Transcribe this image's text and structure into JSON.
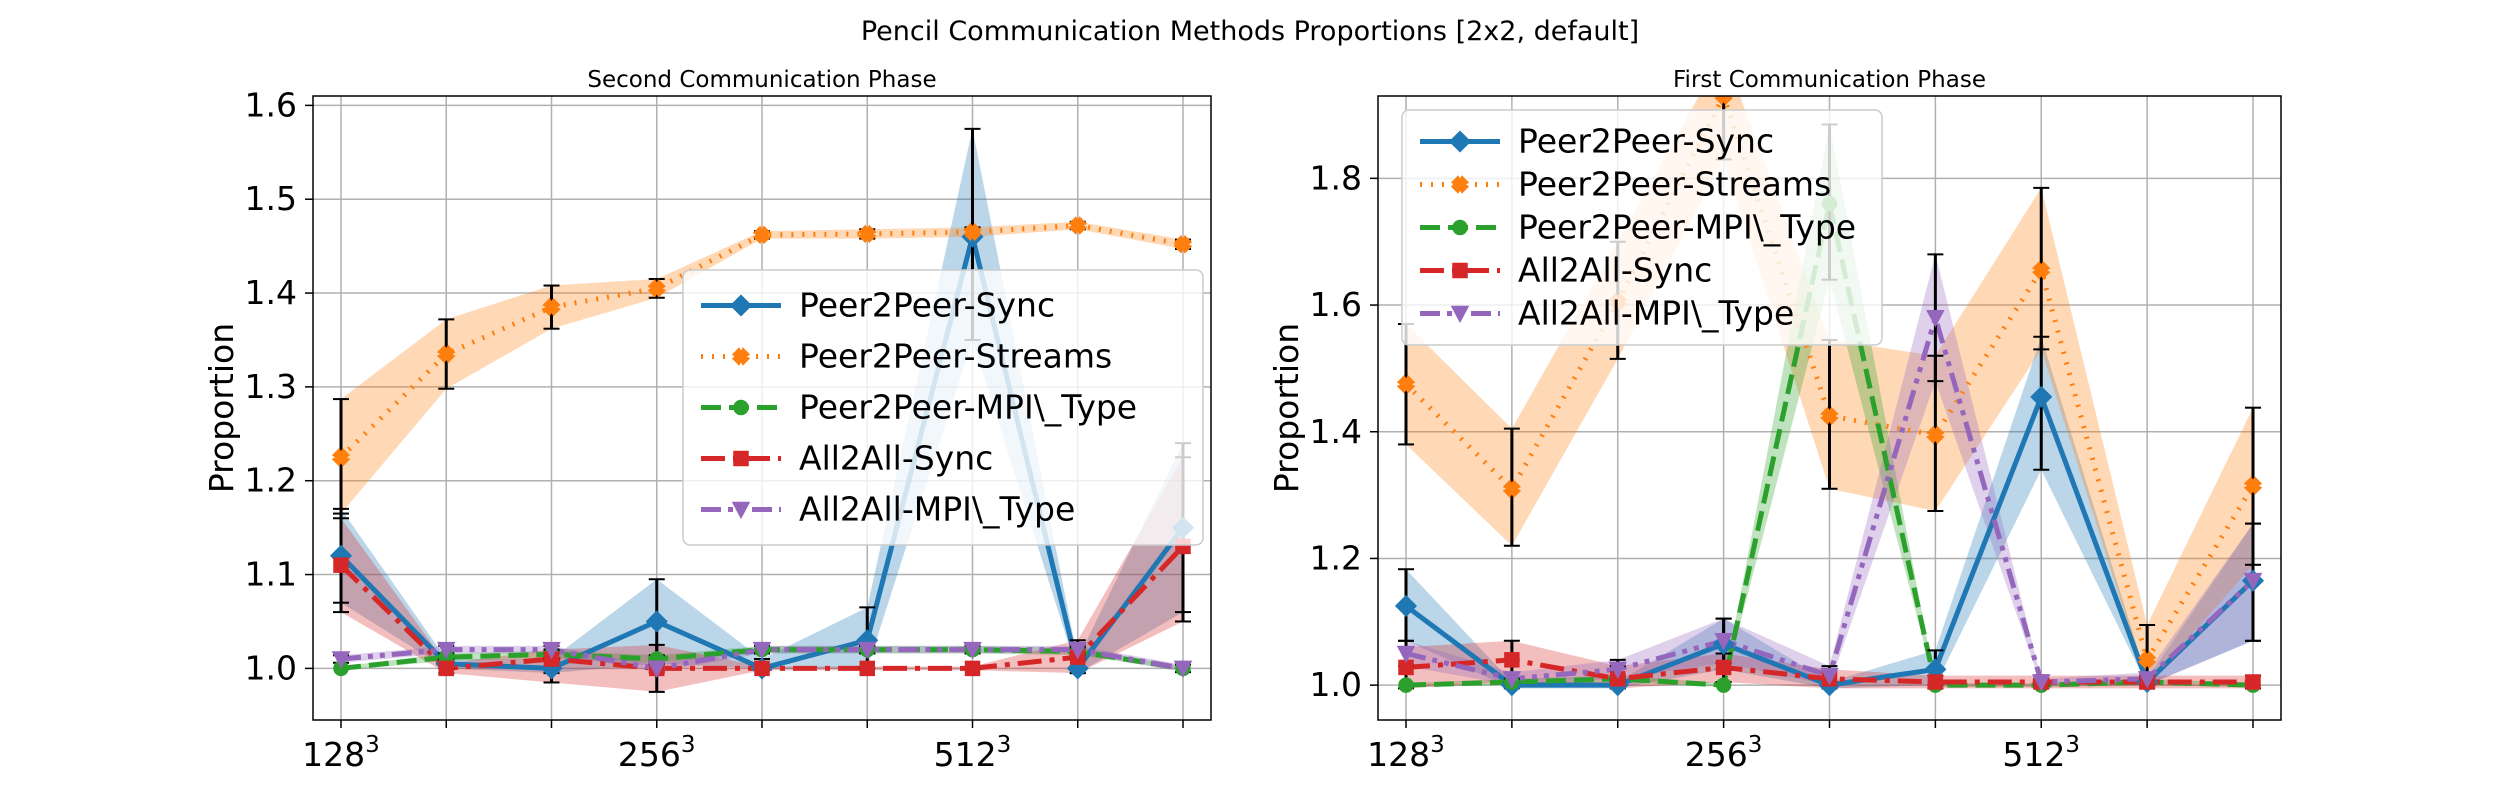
{
  "figure": {
    "title": "Pencil Communication Methods Proportions [2x2, default]"
  },
  "chart_data": [
    {
      "type": "line",
      "title": "Second Communication Phase",
      "ylabel": "Proportion",
      "xlabel": "",
      "ylim": [
        0.945,
        1.61
      ],
      "yticks": [
        1.0,
        1.1,
        1.2,
        1.3,
        1.4,
        1.5,
        1.6
      ],
      "ytick_labels": [
        "1.0",
        "1.1",
        "1.2",
        "1.3",
        "1.4",
        "1.5",
        "1.6"
      ],
      "xtick_labels": [
        {
          "base": "128",
          "exp": "3"
        },
        {
          "base": "256",
          "exp": "3"
        },
        {
          "base": "512",
          "exp": "3"
        }
      ],
      "grid": true,
      "legend": "center-right",
      "series": [
        {
          "name": "Peer2Peer-Sync",
          "color": "#1f77b4",
          "marker": "diamond",
          "dash": "solid",
          "values": [
            1.12,
            1.005,
            1.0,
            1.05,
            1.0,
            1.03,
            1.46,
            1.0,
            1.15
          ],
          "lower": [
            1.07,
            1.0,
            0.995,
            1.005,
            1.0,
            1.0,
            1.35,
            0.995,
            1.06
          ],
          "upper": [
            1.17,
            1.01,
            1.01,
            1.095,
            1.01,
            1.065,
            1.575,
            1.01,
            1.24
          ]
        },
        {
          "name": "Peer2Peer-Streams",
          "color": "#ff7f0e",
          "marker": "x",
          "dash": "dotted",
          "values": [
            1.225,
            1.335,
            1.385,
            1.405,
            1.462,
            1.463,
            1.465,
            1.472,
            1.452
          ],
          "lower": [
            1.165,
            1.298,
            1.362,
            1.395,
            1.458,
            1.458,
            1.46,
            1.468,
            1.447
          ],
          "upper": [
            1.287,
            1.372,
            1.408,
            1.415,
            1.466,
            1.468,
            1.47,
            1.476,
            1.457
          ]
        },
        {
          "name": "Peer2Peer-MPI\\_Type",
          "color": "#2ca02c",
          "marker": "circle",
          "dash": "dashed",
          "values": [
            1.0,
            1.012,
            1.015,
            1.01,
            1.02,
            1.02,
            1.02,
            1.018,
            1.0
          ],
          "lower": [
            0.998,
            1.008,
            1.011,
            1.006,
            1.016,
            1.016,
            1.016,
            1.014,
            0.998
          ],
          "upper": [
            1.002,
            1.016,
            1.019,
            1.014,
            1.024,
            1.024,
            1.024,
            1.022,
            1.002
          ]
        },
        {
          "name": "All2All-Sync",
          "color": "#d62728",
          "marker": "square",
          "dash": "dashdot",
          "values": [
            1.11,
            1.0,
            1.01,
            1.0,
            1.0,
            1.0,
            1.0,
            1.012,
            1.13
          ],
          "lower": [
            1.06,
            0.995,
            0.985,
            0.975,
            0.998,
            0.998,
            0.998,
            0.995,
            1.05
          ],
          "upper": [
            1.16,
            1.005,
            1.02,
            1.025,
            1.002,
            1.002,
            1.002,
            1.03,
            1.225
          ]
        },
        {
          "name": "All2All-MPI\\_Type",
          "color": "#9467bd",
          "marker": "triangle-down",
          "dash": "dashdotdot",
          "values": [
            1.01,
            1.02,
            1.02,
            1.0,
            1.02,
            1.02,
            1.02,
            1.02,
            1.0
          ],
          "lower": [
            1.006,
            1.016,
            1.016,
            0.996,
            1.016,
            1.016,
            1.016,
            1.016,
            0.996
          ],
          "upper": [
            1.014,
            1.024,
            1.024,
            1.004,
            1.024,
            1.024,
            1.024,
            1.024,
            1.004
          ]
        }
      ]
    },
    {
      "type": "line",
      "title": "First Communication Phase",
      "ylabel": "Proportion",
      "xlabel": "",
      "ylim": [
        0.945,
        1.93
      ],
      "yticks": [
        1.0,
        1.2,
        1.4,
        1.6,
        1.8
      ],
      "ytick_labels": [
        "1.0",
        "1.2",
        "1.4",
        "1.6",
        "1.8"
      ],
      "xtick_labels": [
        {
          "base": "128",
          "exp": "3"
        },
        {
          "base": "256",
          "exp": "3"
        },
        {
          "base": "512",
          "exp": "3"
        }
      ],
      "grid": true,
      "legend": "upper-left",
      "series": [
        {
          "name": "Peer2Peer-Sync",
          "color": "#1f77b4",
          "marker": "diamond",
          "dash": "solid",
          "values": [
            1.125,
            1.0,
            1.0,
            1.065,
            1.0,
            1.025,
            1.455,
            1.005,
            1.165
          ],
          "lower": [
            1.07,
            0.995,
            0.995,
            1.025,
            0.995,
            1.0,
            1.34,
            1.0,
            1.07
          ],
          "upper": [
            1.183,
            1.005,
            1.005,
            1.105,
            1.005,
            1.055,
            1.55,
            1.01,
            1.255
          ]
        },
        {
          "name": "Peer2Peer-Streams",
          "color": "#ff7f0e",
          "marker": "x",
          "dash": "dotted",
          "values": [
            1.475,
            1.31,
            1.605,
            1.93,
            1.425,
            1.395,
            1.655,
            1.04,
            1.315
          ],
          "lower": [
            1.38,
            1.22,
            1.515,
            1.83,
            1.31,
            1.275,
            1.53,
            1.0,
            1.19
          ],
          "upper": [
            1.57,
            1.405,
            1.7,
            2.0,
            1.545,
            1.52,
            1.785,
            1.095,
            1.438
          ]
        },
        {
          "name": "Peer2Peer-MPI\\_Type",
          "color": "#2ca02c",
          "marker": "circle",
          "dash": "dashed",
          "values": [
            1.0,
            1.005,
            1.01,
            1.0,
            1.76,
            1.0,
            1.0,
            1.005,
            1.0
          ],
          "lower": [
            0.997,
            1.0,
            1.005,
            0.997,
            1.64,
            0.997,
            0.997,
            1.0,
            0.997
          ],
          "upper": [
            1.003,
            1.01,
            1.015,
            1.003,
            1.885,
            1.003,
            1.003,
            1.01,
            1.003
          ]
        },
        {
          "name": "All2All-Sync",
          "color": "#d62728",
          "marker": "square",
          "dash": "dashdot",
          "values": [
            1.028,
            1.04,
            1.01,
            1.028,
            1.01,
            1.005,
            1.005,
            1.005,
            1.005
          ],
          "lower": [
            0.995,
            1.005,
            0.995,
            1.005,
            0.995,
            0.995,
            0.995,
            0.995,
            0.995
          ],
          "upper": [
            1.06,
            1.07,
            1.03,
            1.05,
            1.025,
            1.015,
            1.015,
            1.015,
            1.015
          ]
        },
        {
          "name": "All2All-MPI\\_Type",
          "color": "#9467bd",
          "marker": "triangle-down",
          "dash": "dashdotdot",
          "values": [
            1.05,
            1.01,
            1.025,
            1.07,
            1.015,
            1.58,
            1.005,
            1.01,
            1.165
          ],
          "lower": [
            1.03,
            1.0,
            1.01,
            1.035,
            1.0,
            1.48,
            1.0,
            1.0,
            1.07
          ],
          "upper": [
            1.07,
            1.02,
            1.04,
            1.105,
            1.03,
            1.68,
            1.01,
            1.02,
            1.255
          ]
        }
      ]
    }
  ]
}
